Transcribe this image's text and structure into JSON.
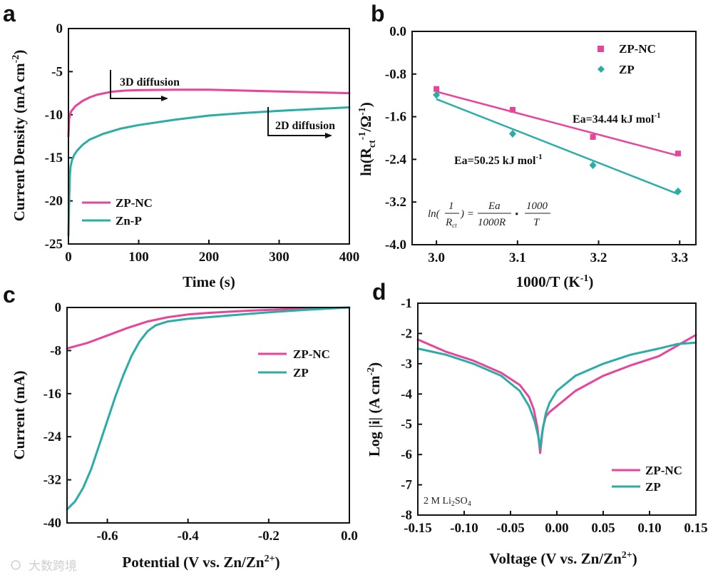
{
  "colors": {
    "zpnc": "#e8449a",
    "zp": "#2aada5",
    "axis": "#111111"
  },
  "watermark": "大数跨境",
  "chart_data": [
    {
      "id": "a",
      "panel_label": "a",
      "type": "line",
      "xlabel": "Time (s)",
      "ylabel": "Current Density (mA cm",
      "ylabel_sup": "-2",
      "ylabel_tail": ")",
      "xlim": [
        0,
        400
      ],
      "ylim": [
        -25,
        0
      ],
      "xticks": [
        0,
        100,
        200,
        300,
        400
      ],
      "yticks": [
        0,
        -5,
        -10,
        -15,
        -20,
        -25
      ],
      "series": [
        {
          "name": "ZP-NC",
          "color": "#e8449a",
          "x": [
            0,
            1,
            2,
            4,
            7,
            10,
            15,
            20,
            30,
            40,
            60,
            80,
            100,
            150,
            200,
            250,
            300,
            350,
            400
          ],
          "y": [
            -12.5,
            -10.5,
            -10.0,
            -9.6,
            -9.3,
            -9.0,
            -8.7,
            -8.4,
            -8.0,
            -7.7,
            -7.35,
            -7.2,
            -7.15,
            -7.1,
            -7.1,
            -7.2,
            -7.3,
            -7.4,
            -7.5
          ]
        },
        {
          "name": "Zn-P",
          "color": "#2aada5",
          "x": [
            0,
            1,
            2,
            3,
            5,
            8,
            12,
            20,
            30,
            50,
            75,
            100,
            150,
            200,
            250,
            300,
            350,
            400
          ],
          "y": [
            -24,
            -20,
            -17,
            -16,
            -15.3,
            -14.7,
            -14.2,
            -13.5,
            -12.9,
            -12.2,
            -11.6,
            -11.2,
            -10.6,
            -10.1,
            -9.8,
            -9.55,
            -9.35,
            -9.15
          ]
        }
      ],
      "legend": [
        "ZP-NC",
        "Zn-P"
      ],
      "annotations": [
        "3D diffusion",
        "2D diffusion"
      ]
    },
    {
      "id": "b",
      "panel_label": "b",
      "type": "scatter",
      "xlabel": "1000/T (K",
      "xlabel_sup": "-1",
      "xlabel_tail": ")",
      "ylabel": "ln(R",
      "ylabel_sub": "ct",
      "ylabel_sup": "-1",
      "ylabel_tail": "/Ω",
      "ylabel_sup2": "-1",
      "ylabel_tail2": ")",
      "xlim": [
        2.97,
        3.32
      ],
      "ylim": [
        -4.0,
        0.0
      ],
      "xticks": [
        3.0,
        3.1,
        3.2,
        3.3
      ],
      "yticks": [
        0.0,
        -0.8,
        -1.6,
        -2.4,
        -3.2,
        -4.0
      ],
      "series": [
        {
          "name": "ZP-NC",
          "color": "#e8449a",
          "marker": "square",
          "x": [
            3.0,
            3.094,
            3.193,
            3.298
          ],
          "y": [
            -1.08,
            -1.47,
            -1.98,
            -2.29
          ],
          "fit": [
            [
              3.0,
              -1.13
            ],
            [
              3.298,
              -2.33
            ]
          ]
        },
        {
          "name": "ZP",
          "color": "#2aada5",
          "marker": "diamond",
          "x": [
            3.0,
            3.094,
            3.193,
            3.298
          ],
          "y": [
            -1.19,
            -1.92,
            -2.51,
            -3.0
          ],
          "fit": [
            [
              3.0,
              -1.27
            ],
            [
              3.298,
              -3.05
            ]
          ]
        }
      ],
      "legend": [
        "ZP-NC",
        "ZP"
      ],
      "annotations": [
        "Ea=34.44 kJ mol",
        "-1",
        "Ea=50.25 kJ mol",
        "-1"
      ],
      "formula": [
        "ln(",
        "1",
        "R",
        "ct",
        ") =",
        "Ea",
        "1000R",
        "•",
        "1000",
        "T"
      ]
    },
    {
      "id": "c",
      "panel_label": "c",
      "type": "line",
      "xlabel": "Potential (V vs. Zn/Zn",
      "xlabel_sup": "2+",
      "xlabel_tail": ")",
      "ylabel": "Current (mA)",
      "xlim": [
        -0.7,
        0.0
      ],
      "ylim": [
        -40,
        0
      ],
      "xticks": [
        -0.6,
        -0.4,
        -0.2,
        0.0
      ],
      "yticks": [
        0,
        -8,
        -16,
        -24,
        -32,
        -40
      ],
      "series": [
        {
          "name": "ZP-NC",
          "color": "#e8449a",
          "x": [
            -0.7,
            -0.65,
            -0.6,
            -0.55,
            -0.5,
            -0.45,
            -0.4,
            -0.35,
            -0.3,
            -0.25,
            -0.2,
            -0.15,
            -0.1,
            -0.05,
            0.0
          ],
          "y": [
            -7.6,
            -6.6,
            -5.2,
            -3.8,
            -2.6,
            -1.8,
            -1.3,
            -1.0,
            -0.8,
            -0.6,
            -0.45,
            -0.3,
            -0.2,
            -0.1,
            0.0
          ]
        },
        {
          "name": "ZP",
          "color": "#2aada5",
          "x": [
            -0.7,
            -0.68,
            -0.66,
            -0.64,
            -0.62,
            -0.6,
            -0.58,
            -0.56,
            -0.54,
            -0.52,
            -0.5,
            -0.48,
            -0.45,
            -0.4,
            -0.35,
            -0.3,
            -0.2,
            -0.1,
            0.0
          ],
          "y": [
            -37.5,
            -36.0,
            -33.5,
            -30.0,
            -25.5,
            -21.0,
            -16.5,
            -12.5,
            -9.0,
            -6.3,
            -4.4,
            -3.3,
            -2.6,
            -2.1,
            -1.8,
            -1.5,
            -0.9,
            -0.4,
            0.0
          ]
        }
      ],
      "legend": [
        "ZP-NC",
        "ZP"
      ]
    },
    {
      "id": "d",
      "panel_label": "d",
      "type": "line",
      "xlabel": "Voltage (V vs. Zn/Zn",
      "xlabel_sup": "2+",
      "xlabel_tail": ")",
      "ylabel": "Log |i| (A cm",
      "ylabel_sup": "-2",
      "ylabel_tail": ")",
      "xlim": [
        -0.15,
        0.15
      ],
      "ylim": [
        -8,
        -1
      ],
      "xticks": [
        -0.15,
        -0.1,
        -0.05,
        0.0,
        0.05,
        0.1,
        0.15
      ],
      "yticks": [
        -1,
        -2,
        -3,
        -4,
        -5,
        -6,
        -7,
        -8
      ],
      "series": [
        {
          "name": "ZP-NC",
          "color": "#e8449a",
          "x": [
            -0.15,
            -0.12,
            -0.09,
            -0.06,
            -0.04,
            -0.03,
            -0.025,
            -0.021,
            -0.018,
            -0.015,
            -0.012,
            -0.008,
            0.0,
            0.02,
            0.05,
            0.08,
            0.11,
            0.13,
            0.15
          ],
          "y": [
            -2.2,
            -2.6,
            -2.9,
            -3.3,
            -3.7,
            -4.1,
            -4.5,
            -5.1,
            -5.95,
            -5.1,
            -4.75,
            -4.6,
            -4.4,
            -3.9,
            -3.4,
            -3.05,
            -2.75,
            -2.4,
            -2.05
          ]
        },
        {
          "name": "ZP",
          "color": "#2aada5",
          "x": [
            -0.15,
            -0.12,
            -0.09,
            -0.06,
            -0.04,
            -0.03,
            -0.024,
            -0.02,
            -0.018,
            -0.016,
            -0.012,
            -0.008,
            0.0,
            0.02,
            0.05,
            0.08,
            0.11,
            0.13,
            0.15
          ],
          "y": [
            -2.5,
            -2.7,
            -3.0,
            -3.4,
            -3.9,
            -4.4,
            -4.9,
            -5.4,
            -5.8,
            -5.3,
            -4.65,
            -4.3,
            -3.9,
            -3.4,
            -3.0,
            -2.7,
            -2.5,
            -2.35,
            -2.3
          ]
        }
      ],
      "legend": [
        "ZP-NC",
        "ZP"
      ],
      "note": [
        "2 M Li",
        "2",
        "SO",
        "4"
      ]
    }
  ]
}
